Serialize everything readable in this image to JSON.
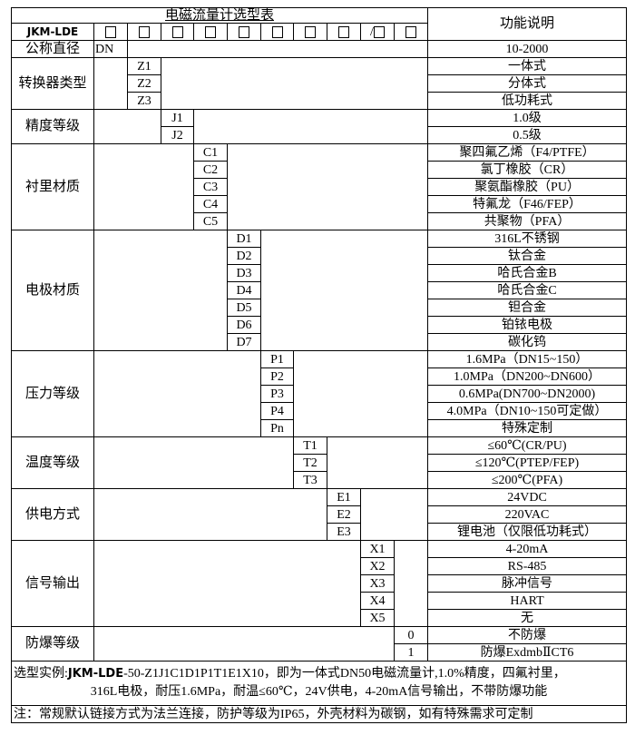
{
  "title": "电磁流量计选型表",
  "function_header": "功能说明",
  "model_prefix": "JKM-LDE",
  "code_slots": [
    "□",
    "□",
    "□",
    "□",
    "□",
    "□",
    "□",
    "□",
    "/□",
    "□"
  ],
  "groups": [
    {
      "label": "公称直径",
      "col": 1,
      "items": [
        {
          "code": "DN",
          "desc": "10-2000"
        }
      ]
    },
    {
      "label": "转换器类型",
      "col": 2,
      "items": [
        {
          "code": "Z1",
          "desc": "一体式"
        },
        {
          "code": "Z2",
          "desc": "分体式"
        },
        {
          "code": "Z3",
          "desc": "低功耗式"
        }
      ]
    },
    {
      "label": "精度等级",
      "col": 3,
      "items": [
        {
          "code": "J1",
          "desc": "1.0级"
        },
        {
          "code": "J2",
          "desc": "0.5级"
        }
      ]
    },
    {
      "label": "衬里材质",
      "col": 4,
      "items": [
        {
          "code": "C1",
          "desc": "聚四氟乙烯（F4/PTFE）"
        },
        {
          "code": "C2",
          "desc": "氯丁橡胶（CR）"
        },
        {
          "code": "C3",
          "desc": "聚氨酯橡胶（PU）"
        },
        {
          "code": "C4",
          "desc": "特氟龙（F46/FEP）"
        },
        {
          "code": "C5",
          "desc": "共聚物（PFA）"
        }
      ]
    },
    {
      "label": "电极材质",
      "col": 5,
      "items": [
        {
          "code": "D1",
          "desc": "316L不锈钢"
        },
        {
          "code": "D2",
          "desc": "钛合金"
        },
        {
          "code": "D3",
          "desc": "哈氏合金B"
        },
        {
          "code": "D4",
          "desc": "哈氏合金C"
        },
        {
          "code": "D5",
          "desc": "钽合金"
        },
        {
          "code": "D6",
          "desc": "铂铱电极"
        },
        {
          "code": "D7",
          "desc": "碳化钨"
        }
      ]
    },
    {
      "label": "压力等级",
      "col": 6,
      "items": [
        {
          "code": "P1",
          "desc": "1.6MPa（DN15~150）"
        },
        {
          "code": "P2",
          "desc": "1.0MPa（DN200~DN600）"
        },
        {
          "code": "P3",
          "desc": "0.6MPa(DN700~DN2000)"
        },
        {
          "code": "P4",
          "desc": "4.0MPa（DN10~150可定做）"
        },
        {
          "code": "Pn",
          "desc": "特殊定制"
        }
      ]
    },
    {
      "label": "温度等级",
      "col": 7,
      "items": [
        {
          "code": "T1",
          "desc": "≤60℃(CR/PU)"
        },
        {
          "code": "T2",
          "desc": "≤120℃(PTEP/FEP)"
        },
        {
          "code": "T3",
          "desc": "≤200℃(PFA)"
        }
      ]
    },
    {
      "label": "供电方式",
      "col": 8,
      "items": [
        {
          "code": "E1",
          "desc": "24VDC"
        },
        {
          "code": "E2",
          "desc": "220VAC"
        },
        {
          "code": "E3",
          "desc": "锂电池（仅限低功耗式）"
        }
      ]
    },
    {
      "label": "信号输出",
      "col": 9,
      "items": [
        {
          "code": "X1",
          "desc": "4-20mA"
        },
        {
          "code": "X2",
          "desc": "RS-485"
        },
        {
          "code": "X3",
          "desc": "脉冲信号"
        },
        {
          "code": "X4",
          "desc": "HART"
        },
        {
          "code": "X5",
          "desc": "无"
        }
      ]
    },
    {
      "label": "防爆等级",
      "col": 10,
      "items": [
        {
          "code": "0",
          "desc": "不防爆"
        },
        {
          "code": "1",
          "desc": "防爆ExdmbⅡCT6"
        }
      ]
    }
  ],
  "example": {
    "prefix": "选型实例:",
    "model": "JKM-LDE",
    "line1": "-50-Z1J1C1D1P1T1E1X10，即为一体式DN50电磁流量计,1.0%精度，四氟衬里，",
    "line2": "316L电极，耐压1.6MPa，耐温≤60℃，24V供电，4-20mA信号输出，不带防爆功能"
  },
  "note": "注：常规默认链接方式为法兰连接，防护等级为IP65，外壳材料为碳钢，如有特殊需求可定制"
}
